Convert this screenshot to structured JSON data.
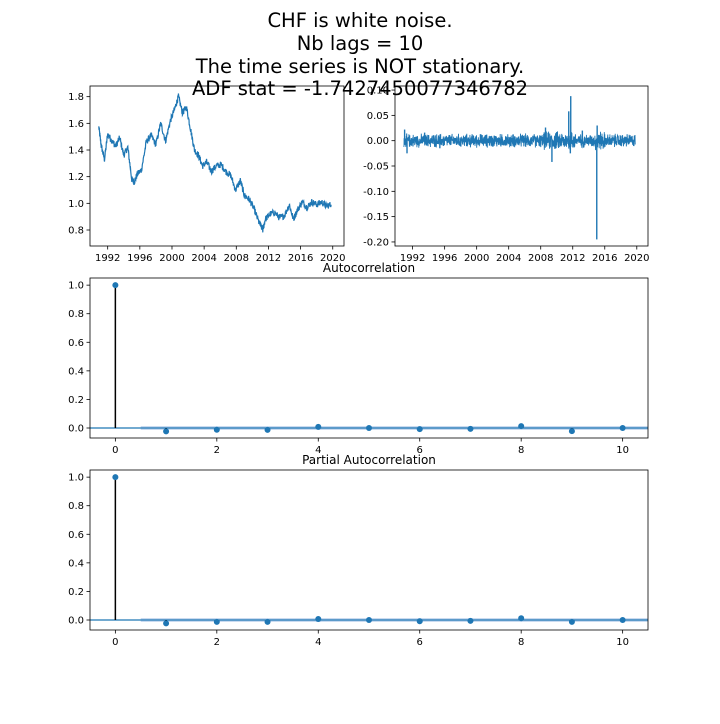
{
  "suptitle": [
    "CHF is white noise.",
    "Nb lags = 10",
    "The time series is NOT stationary.",
    "ADF stat = -1.7427450077346782"
  ],
  "colors": {
    "series": "#1f77b4",
    "band": "#aec7e8",
    "stem": "#000000"
  },
  "chart_data": [
    {
      "type": "line",
      "name": "level",
      "title": "",
      "xlabel": "",
      "ylabel": "",
      "xlim": [
        1989.8,
        2021.4
      ],
      "ylim": [
        0.68,
        1.88
      ],
      "xticks": [
        "1992",
        "1996",
        "2000",
        "2004",
        "2008",
        "2012",
        "2016",
        "2020"
      ],
      "yticks": [
        "0.8",
        "1.0",
        "1.2",
        "1.4",
        "1.6",
        "1.8"
      ],
      "x": [
        1990.9,
        1991.2,
        1991.6,
        1992.0,
        1992.5,
        1993.0,
        1993.5,
        1994.0,
        1994.5,
        1995.0,
        1995.3,
        1995.7,
        1996.2,
        1996.8,
        1997.4,
        1998.0,
        1998.6,
        1999.2,
        1999.8,
        2000.4,
        2000.8,
        2001.3,
        2001.8,
        2002.3,
        2002.8,
        2003.3,
        2003.8,
        2004.3,
        2004.9,
        2005.5,
        2006.1,
        2006.7,
        2007.3,
        2007.9,
        2008.5,
        2009.0,
        2009.6,
        2010.2,
        2010.8,
        2011.3,
        2011.6,
        2012.2,
        2012.8,
        2013.4,
        2014.0,
        2014.6,
        2015.1,
        2015.6,
        2016.2,
        2016.8,
        2017.4,
        2018.0,
        2018.6,
        2019.2,
        2019.8
      ],
      "y": [
        1.57,
        1.43,
        1.33,
        1.52,
        1.47,
        1.43,
        1.49,
        1.36,
        1.42,
        1.18,
        1.16,
        1.22,
        1.25,
        1.46,
        1.51,
        1.44,
        1.6,
        1.47,
        1.62,
        1.72,
        1.8,
        1.68,
        1.72,
        1.56,
        1.4,
        1.36,
        1.28,
        1.31,
        1.24,
        1.28,
        1.29,
        1.24,
        1.21,
        1.1,
        1.17,
        1.06,
        1.03,
        0.96,
        0.86,
        0.8,
        0.88,
        0.92,
        0.93,
        0.89,
        0.91,
        0.99,
        0.88,
        0.95,
        1.01,
        0.97,
        1.01,
        0.99,
        1.01,
        0.98,
        0.99
      ]
    },
    {
      "type": "line",
      "name": "returns",
      "title": "",
      "xlabel": "",
      "ylabel": "",
      "xlim": [
        1989.8,
        2021.4
      ],
      "ylim": [
        -0.208,
        0.108
      ],
      "xticks": [
        "1992",
        "1996",
        "2000",
        "2004",
        "2008",
        "2012",
        "2016",
        "2020"
      ],
      "yticks": [
        "-0.20",
        "-0.15",
        "-0.10",
        "-0.05",
        "0.00",
        "0.05",
        "0.10"
      ],
      "noise_amplitude": 0.012,
      "spikes": [
        {
          "x": 1991.0,
          "y": 0.022
        },
        {
          "x": 1991.3,
          "y": -0.025
        },
        {
          "x": 1993.5,
          "y": 0.016
        },
        {
          "x": 1995.4,
          "y": -0.015
        },
        {
          "x": 2008.6,
          "y": 0.026
        },
        {
          "x": 2009.4,
          "y": -0.042
        },
        {
          "x": 2011.5,
          "y": 0.058
        },
        {
          "x": 2011.7,
          "y": -0.025
        },
        {
          "x": 2011.75,
          "y": 0.088
        },
        {
          "x": 2013.2,
          "y": 0.02
        },
        {
          "x": 2015.0,
          "y": -0.195
        },
        {
          "x": 2015.05,
          "y": 0.03
        }
      ]
    },
    {
      "type": "scatter",
      "name": "acf",
      "title": "Autocorrelation",
      "xlabel": "",
      "ylabel": "",
      "xlim": [
        -0.5,
        10.5
      ],
      "ylim": [
        -0.07,
        1.05
      ],
      "xticks": [
        "0",
        "2",
        "4",
        "6",
        "8",
        "10"
      ],
      "yticks": [
        "0.0",
        "0.2",
        "0.4",
        "0.6",
        "0.8",
        "1.0"
      ],
      "x": [
        0,
        1,
        2,
        3,
        4,
        5,
        6,
        7,
        8,
        9,
        10
      ],
      "y": [
        1.0,
        -0.024,
        -0.012,
        -0.013,
        0.008,
        0.0,
        -0.008,
        -0.006,
        0.013,
        -0.022,
        0.0
      ],
      "confidence_band": 0.013
    },
    {
      "type": "scatter",
      "name": "pacf",
      "title": "Partial Autocorrelation",
      "xlabel": "",
      "ylabel": "",
      "xlim": [
        -0.5,
        10.5
      ],
      "ylim": [
        -0.07,
        1.05
      ],
      "xticks": [
        "0",
        "2",
        "4",
        "6",
        "8",
        "10"
      ],
      "yticks": [
        "0.0",
        "0.2",
        "0.4",
        "0.6",
        "0.8",
        "1.0"
      ],
      "x": [
        0,
        1,
        2,
        3,
        4,
        5,
        6,
        7,
        8,
        9,
        10
      ],
      "y": [
        1.0,
        -0.024,
        -0.013,
        -0.013,
        0.007,
        0.0,
        -0.009,
        -0.006,
        0.012,
        -0.013,
        0.0
      ],
      "confidence_band": 0.013
    }
  ]
}
